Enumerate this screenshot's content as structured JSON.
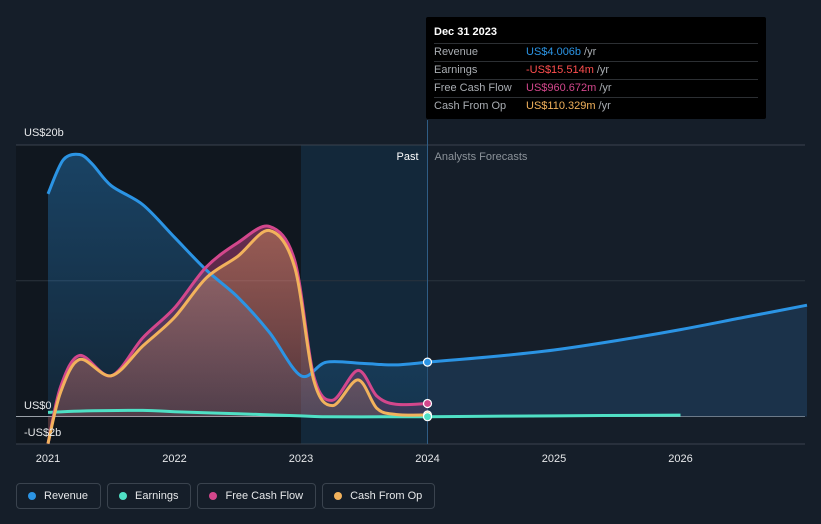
{
  "chart_data": {
    "type": "area",
    "y_unit_labels": {
      "top": "US$20b",
      "zero": "US$0",
      "bottom": "-US$2b"
    },
    "ylim": [
      -2,
      20
    ],
    "xlim": [
      2021.0,
      2027.0
    ],
    "x_ticks": [
      {
        "value": 2021,
        "label": "2021"
      },
      {
        "value": 2022,
        "label": "2022"
      },
      {
        "value": 2023,
        "label": "2023"
      },
      {
        "value": 2024,
        "label": "2024"
      },
      {
        "value": 2025,
        "label": "2025"
      },
      {
        "value": 2026,
        "label": "2026"
      }
    ],
    "past_label": "Past",
    "forecast_label": "Analysts Forecasts",
    "past_end": 2024.0,
    "highlight_start": 2023.0,
    "series": [
      {
        "name": "Revenue",
        "color": "#2b94e4",
        "past": [
          [
            2021.0,
            16.4
          ],
          [
            2021.12,
            18.9
          ],
          [
            2021.25,
            19.3
          ],
          [
            2021.35,
            18.6
          ],
          [
            2021.5,
            17.0
          ],
          [
            2021.75,
            15.6
          ],
          [
            2022.0,
            13.2
          ],
          [
            2022.25,
            10.8
          ],
          [
            2022.5,
            8.8
          ],
          [
            2022.75,
            6.2
          ],
          [
            2023.0,
            3.0
          ],
          [
            2023.2,
            4.0
          ],
          [
            2023.5,
            3.9
          ],
          [
            2023.75,
            3.8
          ],
          [
            2024.0,
            4.006
          ]
        ],
        "forecast": [
          [
            2024.0,
            4.006
          ],
          [
            2024.5,
            4.4
          ],
          [
            2025.0,
            4.9
          ],
          [
            2025.5,
            5.6
          ],
          [
            2026.0,
            6.4
          ],
          [
            2026.5,
            7.3
          ],
          [
            2027.0,
            8.2
          ]
        ]
      },
      {
        "name": "Earnings",
        "color": "#4fe0c5",
        "past": [
          [
            2021.0,
            0.3
          ],
          [
            2021.25,
            0.4
          ],
          [
            2021.75,
            0.45
          ],
          [
            2022.0,
            0.35
          ],
          [
            2022.5,
            0.2
          ],
          [
            2023.0,
            0.05
          ],
          [
            2023.2,
            -0.02
          ],
          [
            2023.75,
            -0.02
          ],
          [
            2024.0,
            -0.0155
          ]
        ],
        "forecast": [
          [
            2024.0,
            -0.0155
          ],
          [
            2025.0,
            0.05
          ],
          [
            2026.0,
            0.1
          ]
        ]
      },
      {
        "name": "Free Cash Flow",
        "color": "#d3478c",
        "past": [
          [
            2021.0,
            -2.0
          ],
          [
            2021.1,
            2.2
          ],
          [
            2021.25,
            4.5
          ],
          [
            2021.5,
            3.0
          ],
          [
            2021.75,
            5.8
          ],
          [
            2022.0,
            8.0
          ],
          [
            2022.25,
            11.0
          ],
          [
            2022.5,
            12.8
          ],
          [
            2022.75,
            14.0
          ],
          [
            2022.95,
            11.5
          ],
          [
            2023.1,
            3.0
          ],
          [
            2023.25,
            1.2
          ],
          [
            2023.45,
            3.4
          ],
          [
            2023.6,
            1.5
          ],
          [
            2023.75,
            0.9
          ],
          [
            2024.0,
            0.96
          ]
        ]
      },
      {
        "name": "Cash From Op",
        "color": "#f2b25c",
        "past": [
          [
            2021.0,
            -2.0
          ],
          [
            2021.1,
            1.8
          ],
          [
            2021.25,
            4.2
          ],
          [
            2021.5,
            3.0
          ],
          [
            2021.75,
            5.2
          ],
          [
            2022.0,
            7.3
          ],
          [
            2022.25,
            10.2
          ],
          [
            2022.5,
            11.8
          ],
          [
            2022.75,
            13.7
          ],
          [
            2022.95,
            11.0
          ],
          [
            2023.1,
            2.7
          ],
          [
            2023.25,
            0.8
          ],
          [
            2023.45,
            2.7
          ],
          [
            2023.6,
            0.6
          ],
          [
            2023.75,
            0.15
          ],
          [
            2024.0,
            0.11
          ]
        ]
      }
    ]
  },
  "tooltip": {
    "date": "Dec 31 2023",
    "rows": [
      {
        "label": "Revenue",
        "value": "US$4.006b",
        "unit": "/yr",
        "color": "#2b94e4"
      },
      {
        "label": "Earnings",
        "value": "-US$15.514m",
        "unit": "/yr",
        "color": "#ff4e4e"
      },
      {
        "label": "Free Cash Flow",
        "value": "US$960.672m",
        "unit": "/yr",
        "color": "#d3478c"
      },
      {
        "label": "Cash From Op",
        "value": "US$110.329m",
        "unit": "/yr",
        "color": "#f2b25c"
      }
    ]
  },
  "legend": [
    {
      "label": "Revenue",
      "color": "#2b94e4"
    },
    {
      "label": "Earnings",
      "color": "#4fe0c5"
    },
    {
      "label": "Free Cash Flow",
      "color": "#d3478c"
    },
    {
      "label": "Cash From Op",
      "color": "#f2b25c"
    }
  ]
}
